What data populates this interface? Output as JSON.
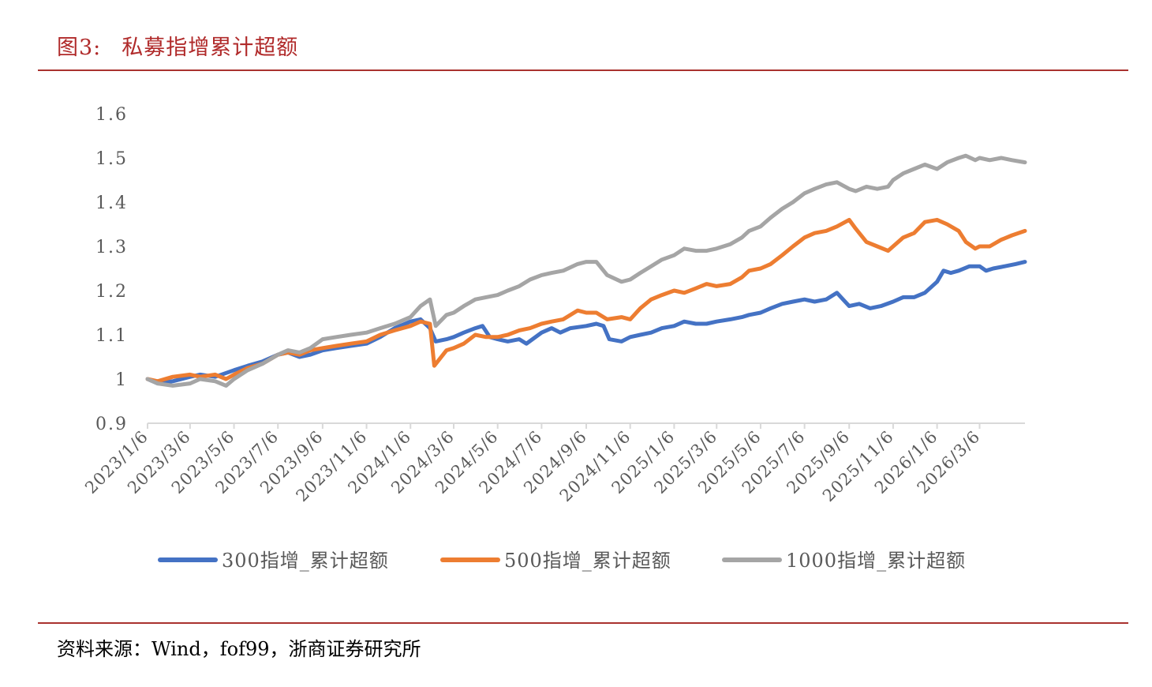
{
  "header": {
    "figure_label": "图3:",
    "figure_title": "私募指增累计超额"
  },
  "footer": {
    "source": "资料来源：Wind，fof99，浙商证券研究所"
  },
  "colors": {
    "title_red": "#b02a2a",
    "rule_red": "#a9322f",
    "series_300": "#4472c4",
    "series_500": "#ed7d31",
    "series_1000": "#a5a5a5",
    "axis": "#d9d9d9",
    "tick_text": "#595959"
  },
  "chart_data": {
    "type": "line",
    "title": "",
    "xlabel": "",
    "ylabel": "",
    "grid": false,
    "legend_position": "bottom",
    "ylim": [
      0.9,
      1.6
    ],
    "y_ticks": [
      0.9,
      1.0,
      1.1,
      1.2,
      1.3,
      1.4,
      1.5,
      1.6
    ],
    "y_tick_labels": [
      "0.9",
      "1",
      "1.1",
      "1.2",
      "1.3",
      "1.4",
      "1.5",
      "1.6"
    ],
    "x_range": [
      "2023-01-06",
      "2026-05-08"
    ],
    "x_ticks": [
      "2023-01-06",
      "2023-03-06",
      "2023-05-06",
      "2023-07-06",
      "2023-09-06",
      "2023-11-06",
      "2024-01-06",
      "2024-03-06",
      "2024-05-06",
      "2024-07-06",
      "2024-09-06",
      "2024-11-06",
      "2025-01-06",
      "2025-03-06",
      "2025-05-06",
      "2025-07-06",
      "2025-09-06",
      "2025-11-06",
      "2026-01-06",
      "2026-03-06"
    ],
    "x_tick_labels": [
      "2023/1/6",
      "2023/3/6",
      "2023/5/6",
      "2023/7/6",
      "2023/9/6",
      "2023/11/6",
      "2024/1/6",
      "2024/3/6",
      "2024/5/6",
      "2024/7/6",
      "2024/9/6",
      "2024/11/6",
      "2025/1/6",
      "2025/3/6",
      "2025/5/6",
      "2025/7/6",
      "2025/9/6",
      "2025/11/6",
      "2026/1/6",
      "2026/3/6"
    ],
    "series": [
      {
        "name": "300指增_累计超额",
        "color": "#4472c4",
        "points": [
          [
            "2023-01-06",
            1.0
          ],
          [
            "2023-01-20",
            0.99
          ],
          [
            "2023-02-10",
            0.995
          ],
          [
            "2023-03-06",
            1.005
          ],
          [
            "2023-03-20",
            1.01
          ],
          [
            "2023-04-10",
            1.005
          ],
          [
            "2023-05-06",
            1.02
          ],
          [
            "2023-05-25",
            1.03
          ],
          [
            "2023-06-15",
            1.04
          ],
          [
            "2023-07-06",
            1.055
          ],
          [
            "2023-07-20",
            1.06
          ],
          [
            "2023-08-05",
            1.05
          ],
          [
            "2023-08-20",
            1.055
          ],
          [
            "2023-09-06",
            1.065
          ],
          [
            "2023-09-25",
            1.07
          ],
          [
            "2023-10-15",
            1.075
          ],
          [
            "2023-11-06",
            1.08
          ],
          [
            "2023-11-25",
            1.095
          ],
          [
            "2023-12-15",
            1.115
          ],
          [
            "2024-01-06",
            1.13
          ],
          [
            "2024-01-20",
            1.135
          ],
          [
            "2024-02-02",
            1.115
          ],
          [
            "2024-02-10",
            1.085
          ],
          [
            "2024-02-25",
            1.09
          ],
          [
            "2024-03-06",
            1.095
          ],
          [
            "2024-03-20",
            1.105
          ],
          [
            "2024-04-05",
            1.115
          ],
          [
            "2024-04-15",
            1.12
          ],
          [
            "2024-04-25",
            1.095
          ],
          [
            "2024-05-06",
            1.09
          ],
          [
            "2024-05-20",
            1.085
          ],
          [
            "2024-06-05",
            1.09
          ],
          [
            "2024-06-15",
            1.08
          ],
          [
            "2024-07-06",
            1.105
          ],
          [
            "2024-07-20",
            1.115
          ],
          [
            "2024-08-01",
            1.105
          ],
          [
            "2024-08-15",
            1.115
          ],
          [
            "2024-09-06",
            1.12
          ],
          [
            "2024-09-20",
            1.125
          ],
          [
            "2024-09-30",
            1.12
          ],
          [
            "2024-10-08",
            1.09
          ],
          [
            "2024-10-25",
            1.085
          ],
          [
            "2024-11-06",
            1.095
          ],
          [
            "2024-11-20",
            1.1
          ],
          [
            "2024-12-05",
            1.105
          ],
          [
            "2024-12-20",
            1.115
          ],
          [
            "2025-01-06",
            1.12
          ],
          [
            "2025-01-20",
            1.13
          ],
          [
            "2025-02-05",
            1.125
          ],
          [
            "2025-02-20",
            1.125
          ],
          [
            "2025-03-06",
            1.13
          ],
          [
            "2025-03-25",
            1.135
          ],
          [
            "2025-04-10",
            1.14
          ],
          [
            "2025-04-20",
            1.145
          ],
          [
            "2025-05-06",
            1.15
          ],
          [
            "2025-05-20",
            1.16
          ],
          [
            "2025-06-05",
            1.17
          ],
          [
            "2025-06-20",
            1.175
          ],
          [
            "2025-07-06",
            1.18
          ],
          [
            "2025-07-20",
            1.175
          ],
          [
            "2025-08-05",
            1.18
          ],
          [
            "2025-08-20",
            1.195
          ],
          [
            "2025-09-06",
            1.165
          ],
          [
            "2025-09-20",
            1.17
          ],
          [
            "2025-10-05",
            1.16
          ],
          [
            "2025-10-20",
            1.165
          ],
          [
            "2025-11-06",
            1.175
          ],
          [
            "2025-11-20",
            1.185
          ],
          [
            "2025-12-05",
            1.185
          ],
          [
            "2025-12-20",
            1.195
          ],
          [
            "2026-01-06",
            1.22
          ],
          [
            "2026-01-15",
            1.245
          ],
          [
            "2026-01-25",
            1.24
          ],
          [
            "2026-02-05",
            1.245
          ],
          [
            "2026-02-20",
            1.255
          ],
          [
            "2026-03-06",
            1.255
          ],
          [
            "2026-03-15",
            1.245
          ],
          [
            "2026-03-25",
            1.25
          ],
          [
            "2026-04-10",
            1.255
          ],
          [
            "2026-04-25",
            1.26
          ],
          [
            "2026-05-08",
            1.265
          ]
        ]
      },
      {
        "name": "500指增_累计超额",
        "color": "#ed7d31",
        "points": [
          [
            "2023-01-06",
            1.0
          ],
          [
            "2023-01-20",
            0.995
          ],
          [
            "2023-02-10",
            1.005
          ],
          [
            "2023-03-06",
            1.01
          ],
          [
            "2023-03-20",
            1.005
          ],
          [
            "2023-04-10",
            1.01
          ],
          [
            "2023-04-25",
            1.0
          ],
          [
            "2023-05-06",
            1.01
          ],
          [
            "2023-05-25",
            1.025
          ],
          [
            "2023-06-15",
            1.035
          ],
          [
            "2023-07-06",
            1.055
          ],
          [
            "2023-07-20",
            1.06
          ],
          [
            "2023-08-05",
            1.055
          ],
          [
            "2023-08-20",
            1.065
          ],
          [
            "2023-09-06",
            1.07
          ],
          [
            "2023-09-25",
            1.075
          ],
          [
            "2023-10-15",
            1.08
          ],
          [
            "2023-11-06",
            1.085
          ],
          [
            "2023-11-25",
            1.1
          ],
          [
            "2023-12-15",
            1.11
          ],
          [
            "2024-01-06",
            1.12
          ],
          [
            "2024-01-20",
            1.13
          ],
          [
            "2024-02-02",
            1.125
          ],
          [
            "2024-02-08",
            1.03
          ],
          [
            "2024-02-25",
            1.065
          ],
          [
            "2024-03-06",
            1.07
          ],
          [
            "2024-03-20",
            1.08
          ],
          [
            "2024-04-05",
            1.1
          ],
          [
            "2024-04-20",
            1.095
          ],
          [
            "2024-05-06",
            1.095
          ],
          [
            "2024-05-20",
            1.1
          ],
          [
            "2024-06-05",
            1.11
          ],
          [
            "2024-06-20",
            1.115
          ],
          [
            "2024-07-06",
            1.125
          ],
          [
            "2024-07-20",
            1.13
          ],
          [
            "2024-08-05",
            1.135
          ],
          [
            "2024-08-25",
            1.155
          ],
          [
            "2024-09-06",
            1.15
          ],
          [
            "2024-09-20",
            1.15
          ],
          [
            "2024-10-05",
            1.135
          ],
          [
            "2024-10-25",
            1.14
          ],
          [
            "2024-11-06",
            1.135
          ],
          [
            "2024-11-20",
            1.16
          ],
          [
            "2024-12-05",
            1.18
          ],
          [
            "2024-12-20",
            1.19
          ],
          [
            "2025-01-06",
            1.2
          ],
          [
            "2025-01-20",
            1.195
          ],
          [
            "2025-02-05",
            1.205
          ],
          [
            "2025-02-20",
            1.215
          ],
          [
            "2025-03-06",
            1.21
          ],
          [
            "2025-03-25",
            1.215
          ],
          [
            "2025-04-10",
            1.23
          ],
          [
            "2025-04-20",
            1.245
          ],
          [
            "2025-05-06",
            1.25
          ],
          [
            "2025-05-20",
            1.26
          ],
          [
            "2025-06-05",
            1.28
          ],
          [
            "2025-06-20",
            1.3
          ],
          [
            "2025-07-06",
            1.32
          ],
          [
            "2025-07-20",
            1.33
          ],
          [
            "2025-08-05",
            1.335
          ],
          [
            "2025-08-20",
            1.345
          ],
          [
            "2025-09-06",
            1.36
          ],
          [
            "2025-09-15",
            1.34
          ],
          [
            "2025-09-30",
            1.31
          ],
          [
            "2025-10-15",
            1.3
          ],
          [
            "2025-10-30",
            1.29
          ],
          [
            "2025-11-06",
            1.3
          ],
          [
            "2025-11-20",
            1.32
          ],
          [
            "2025-12-05",
            1.33
          ],
          [
            "2025-12-20",
            1.355
          ],
          [
            "2026-01-06",
            1.36
          ],
          [
            "2026-01-20",
            1.35
          ],
          [
            "2026-02-05",
            1.335
          ],
          [
            "2026-02-15",
            1.31
          ],
          [
            "2026-02-28",
            1.295
          ],
          [
            "2026-03-06",
            1.3
          ],
          [
            "2026-03-20",
            1.3
          ],
          [
            "2026-04-05",
            1.315
          ],
          [
            "2026-04-20",
            1.325
          ],
          [
            "2026-05-08",
            1.335
          ]
        ]
      },
      {
        "name": "1000指增_累计超额",
        "color": "#a5a5a5",
        "points": [
          [
            "2023-01-06",
            1.0
          ],
          [
            "2023-01-20",
            0.99
          ],
          [
            "2023-02-10",
            0.985
          ],
          [
            "2023-03-06",
            0.99
          ],
          [
            "2023-03-20",
            1.0
          ],
          [
            "2023-04-10",
            0.995
          ],
          [
            "2023-04-25",
            0.985
          ],
          [
            "2023-05-06",
            1.0
          ],
          [
            "2023-05-25",
            1.02
          ],
          [
            "2023-06-15",
            1.035
          ],
          [
            "2023-07-06",
            1.055
          ],
          [
            "2023-07-20",
            1.065
          ],
          [
            "2023-08-05",
            1.06
          ],
          [
            "2023-08-20",
            1.07
          ],
          [
            "2023-09-06",
            1.09
          ],
          [
            "2023-09-25",
            1.095
          ],
          [
            "2023-10-15",
            1.1
          ],
          [
            "2023-11-06",
            1.105
          ],
          [
            "2023-11-25",
            1.115
          ],
          [
            "2023-12-15",
            1.125
          ],
          [
            "2024-01-06",
            1.14
          ],
          [
            "2024-01-20",
            1.165
          ],
          [
            "2024-02-02",
            1.18
          ],
          [
            "2024-02-10",
            1.12
          ],
          [
            "2024-02-25",
            1.145
          ],
          [
            "2024-03-06",
            1.15
          ],
          [
            "2024-03-20",
            1.165
          ],
          [
            "2024-04-05",
            1.18
          ],
          [
            "2024-04-20",
            1.185
          ],
          [
            "2024-05-06",
            1.19
          ],
          [
            "2024-05-20",
            1.2
          ],
          [
            "2024-06-05",
            1.21
          ],
          [
            "2024-06-20",
            1.225
          ],
          [
            "2024-07-06",
            1.235
          ],
          [
            "2024-07-20",
            1.24
          ],
          [
            "2024-08-05",
            1.245
          ],
          [
            "2024-08-25",
            1.26
          ],
          [
            "2024-09-06",
            1.265
          ],
          [
            "2024-09-20",
            1.265
          ],
          [
            "2024-10-05",
            1.235
          ],
          [
            "2024-10-25",
            1.22
          ],
          [
            "2024-11-06",
            1.225
          ],
          [
            "2024-11-20",
            1.24
          ],
          [
            "2024-12-05",
            1.255
          ],
          [
            "2024-12-20",
            1.27
          ],
          [
            "2025-01-06",
            1.28
          ],
          [
            "2025-01-20",
            1.295
          ],
          [
            "2025-02-05",
            1.29
          ],
          [
            "2025-02-20",
            1.29
          ],
          [
            "2025-03-06",
            1.295
          ],
          [
            "2025-03-25",
            1.305
          ],
          [
            "2025-04-10",
            1.32
          ],
          [
            "2025-04-20",
            1.335
          ],
          [
            "2025-05-06",
            1.345
          ],
          [
            "2025-05-20",
            1.365
          ],
          [
            "2025-06-05",
            1.385
          ],
          [
            "2025-06-20",
            1.4
          ],
          [
            "2025-07-06",
            1.42
          ],
          [
            "2025-07-20",
            1.43
          ],
          [
            "2025-08-05",
            1.44
          ],
          [
            "2025-08-20",
            1.445
          ],
          [
            "2025-09-06",
            1.43
          ],
          [
            "2025-09-15",
            1.425
          ],
          [
            "2025-09-30",
            1.435
          ],
          [
            "2025-10-15",
            1.43
          ],
          [
            "2025-10-30",
            1.435
          ],
          [
            "2025-11-06",
            1.45
          ],
          [
            "2025-11-20",
            1.465
          ],
          [
            "2025-12-05",
            1.475
          ],
          [
            "2025-12-20",
            1.485
          ],
          [
            "2026-01-06",
            1.475
          ],
          [
            "2026-01-20",
            1.49
          ],
          [
            "2026-02-05",
            1.5
          ],
          [
            "2026-02-15",
            1.505
          ],
          [
            "2026-02-28",
            1.495
          ],
          [
            "2026-03-06",
            1.5
          ],
          [
            "2026-03-20",
            1.495
          ],
          [
            "2026-04-05",
            1.5
          ],
          [
            "2026-04-20",
            1.495
          ],
          [
            "2026-05-08",
            1.49
          ]
        ]
      }
    ]
  }
}
